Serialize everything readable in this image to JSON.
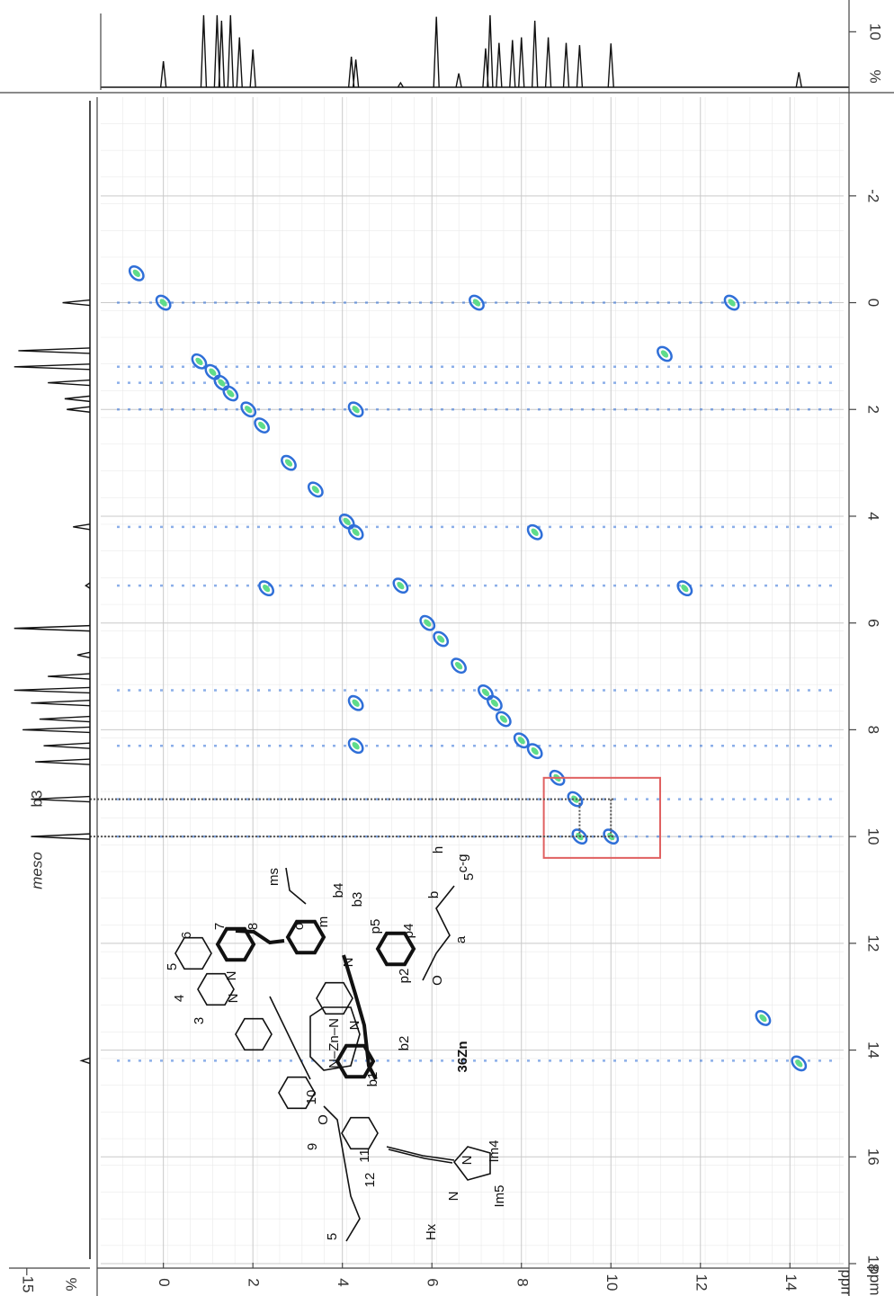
{
  "chart_data": {
    "type": "nmr2d",
    "x_label": "ppm",
    "y_label": "ppm",
    "xlim": [
      -1.4,
      15.2
    ],
    "xticks": [
      0,
      2,
      4,
      6,
      8,
      10,
      12,
      14
    ],
    "ylim": [
      -3.85,
      18.0
    ],
    "yticks": [
      -2,
      0,
      2,
      4,
      6,
      8,
      10,
      12,
      14,
      16,
      18
    ],
    "grid": true,
    "colors": [
      "#2f6fd8",
      "#5fdc8a"
    ],
    "peaks": {
      "x": [
        0.0,
        0.8,
        1.1,
        1.3,
        1.5,
        1.9,
        2.2,
        2.8,
        3.4,
        4.1,
        4.3,
        5.3,
        5.9,
        6.2,
        6.6,
        7.2,
        7.4,
        7.6,
        8.0,
        8.3,
        8.8,
        9.2,
        10.0,
        9.3,
        13.4,
        14.2,
        -0.6,
        4.3,
        7.0,
        12.7,
        11.2,
        8.3,
        11.65,
        2.3,
        4.3,
        4.3
      ],
      "y": [
        0.0,
        1.1,
        1.3,
        1.5,
        1.7,
        2.0,
        2.3,
        3.0,
        3.5,
        4.1,
        4.3,
        5.3,
        6.0,
        6.3,
        6.8,
        7.3,
        7.5,
        7.8,
        8.2,
        8.4,
        8.9,
        9.3,
        10.0,
        10.0,
        13.4,
        14.25,
        -0.55,
        2.0,
        0.0,
        0.0,
        0.96,
        4.3,
        5.35,
        5.35,
        7.5,
        8.3
      ]
    },
    "t1_ridges": [
      0.0,
      1.2,
      1.5,
      2.0,
      4.2,
      5.3,
      7.26,
      8.3,
      9.3,
      10.0,
      14.2
    ],
    "highlight": {
      "box_x": [
        8.5,
        11.1
      ],
      "box_y": [
        8.9,
        10.4
      ],
      "links": [
        9.3,
        10.0
      ],
      "color": "#e06060"
    },
    "top_spectrum": {
      "axis_label": "%",
      "ylim": [
        0,
        13.3
      ],
      "yticks": [
        10
      ],
      "x": [
        0.0,
        0.9,
        1.2,
        1.3,
        1.5,
        1.7,
        2.0,
        4.2,
        4.3,
        5.3,
        6.1,
        6.6,
        7.2,
        7.3,
        7.5,
        7.8,
        8.0,
        8.3,
        8.6,
        9.0,
        9.3,
        10.0,
        14.2
      ],
      "values": [
        4.7,
        13,
        13,
        12,
        13,
        9,
        6.8,
        5.5,
        5.0,
        0.8,
        12.7,
        2.5,
        7,
        13,
        8,
        8.5,
        9,
        12,
        9,
        8,
        7.6,
        7.9,
        2.7
      ]
    },
    "left_spectrum": {
      "axis_label": "%",
      "xlim": [
        0,
        18.8
      ],
      "xticks": [
        15
      ],
      "peak_labels": [
        "meso",
        "b3"
      ],
      "y": [
        0.0,
        0.9,
        1.2,
        1.5,
        1.8,
        2.0,
        4.2,
        5.3,
        6.1,
        6.6,
        7.0,
        7.26,
        7.5,
        7.8,
        8.0,
        8.3,
        8.6,
        9.3,
        10.0,
        14.2
      ],
      "values": [
        6.5,
        17,
        18,
        10,
        6,
        5.5,
        4,
        1,
        18,
        3,
        10,
        18,
        14,
        12,
        16,
        11,
        13,
        14,
        14,
        2
      ]
    },
    "structure": {
      "compound": "36Zn",
      "labels": [
        "ms",
        "o",
        "m",
        "b4",
        "b3",
        "p5",
        "p4",
        "p2",
        "a",
        "b",
        "c-g",
        "h",
        "5",
        "O",
        "b2",
        "b1",
        "9",
        "10",
        "11",
        "12",
        "Im4",
        "Im5",
        "N",
        "N",
        "Hx",
        "5",
        "O",
        "3",
        "4",
        "5",
        "6",
        "7",
        "8",
        "N",
        "N",
        "N",
        "N–Zn–N",
        "N"
      ]
    }
  }
}
